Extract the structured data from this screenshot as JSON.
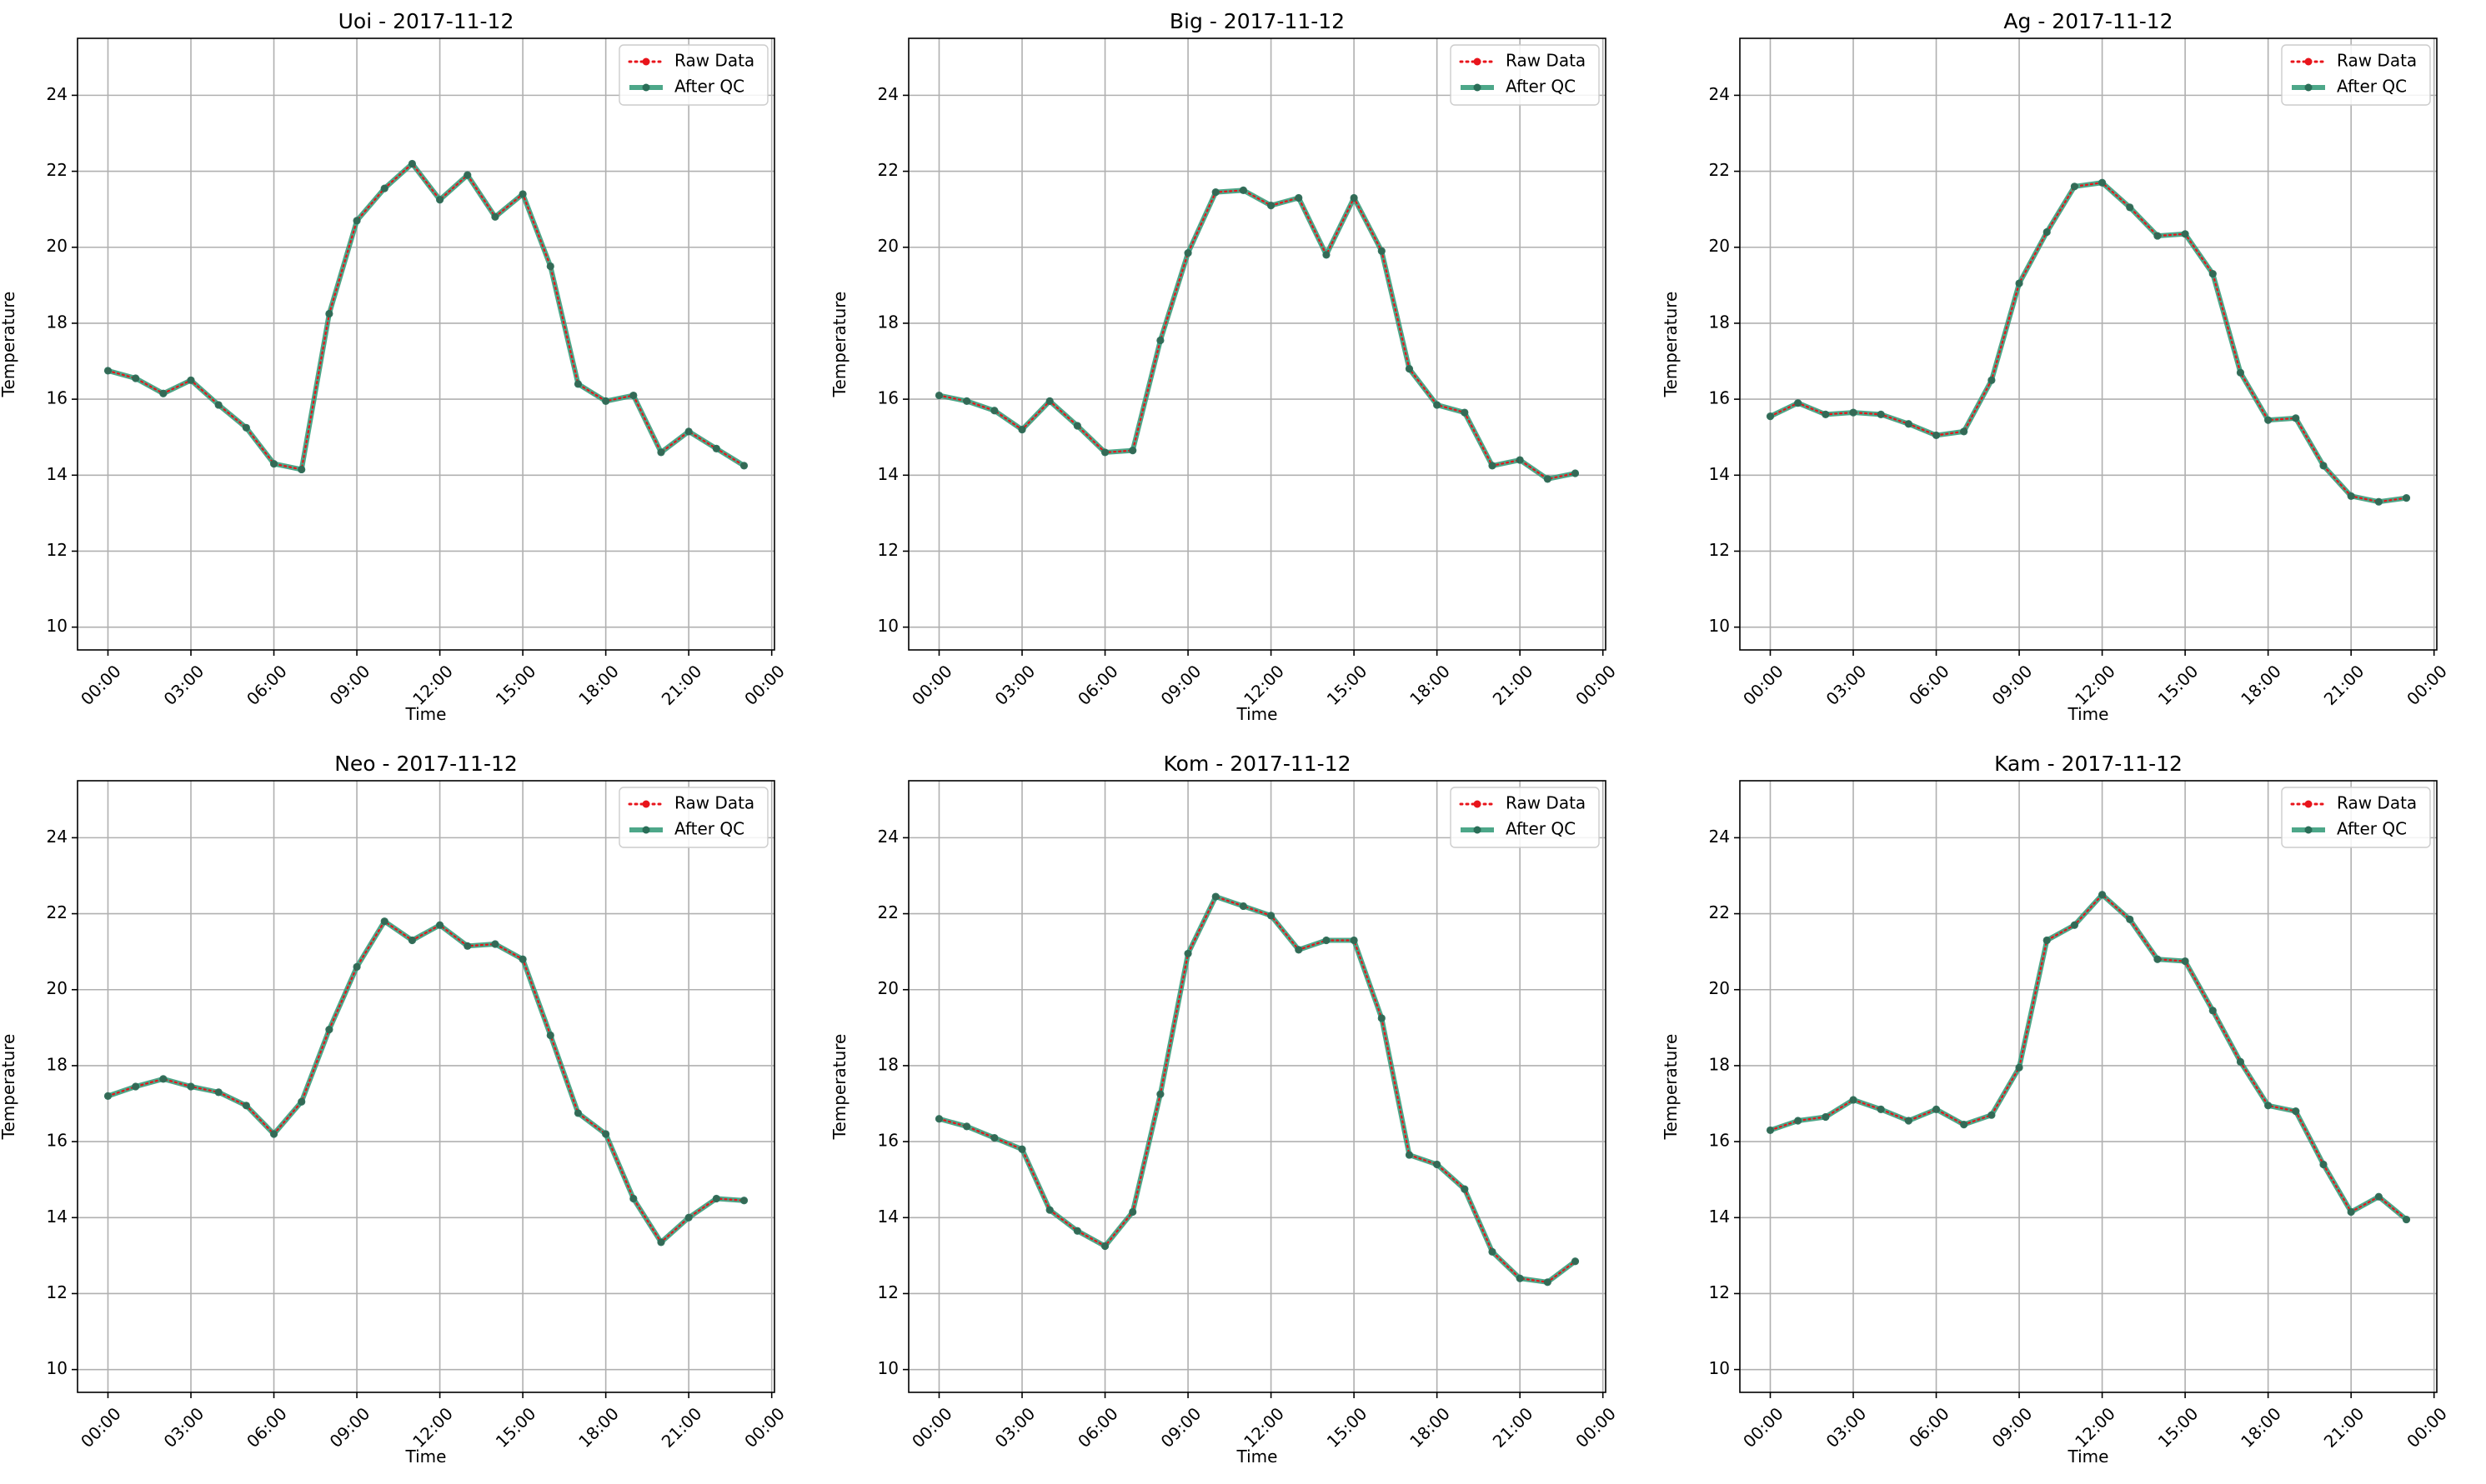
{
  "chart_data": [
    {
      "type": "line",
      "title": "Uoi - 2017-11-12",
      "xlabel": "Time",
      "ylabel": "Temperature",
      "x_unit": "hour",
      "xlim": [
        -1.1,
        24.1
      ],
      "ylim": [
        9.4,
        25.5
      ],
      "xticks": [
        "00:00",
        "03:00",
        "06:00",
        "09:00",
        "12:00",
        "15:00",
        "18:00",
        "21:00",
        "00:00"
      ],
      "yticks": [
        "10",
        "12",
        "14",
        "16",
        "18",
        "20",
        "22",
        "24"
      ],
      "grid": true,
      "legend_position": "top-right",
      "x": [
        0,
        1,
        2,
        3,
        4,
        5,
        6,
        7,
        8,
        9,
        10,
        11,
        12,
        13,
        14,
        15,
        16,
        17,
        18,
        19,
        20,
        21,
        22,
        23
      ],
      "series": [
        {
          "name": "Raw Data",
          "values": [
            16.75,
            16.55,
            16.15,
            16.5,
            15.85,
            15.25,
            14.3,
            14.15,
            18.25,
            20.7,
            21.55,
            22.2,
            21.25,
            21.9,
            20.8,
            21.4,
            19.5,
            16.4,
            15.95,
            16.1,
            14.6,
            15.15,
            14.7,
            14.25
          ]
        },
        {
          "name": "After QC",
          "values": [
            16.75,
            16.55,
            16.15,
            16.5,
            15.85,
            15.25,
            14.3,
            14.15,
            18.25,
            20.7,
            21.55,
            22.2,
            21.25,
            21.9,
            20.8,
            21.4,
            19.5,
            16.4,
            15.95,
            16.1,
            14.6,
            15.15,
            14.7,
            14.25
          ]
        }
      ]
    },
    {
      "type": "line",
      "title": "Big - 2017-11-12",
      "xlabel": "Time",
      "ylabel": "Temperature",
      "x_unit": "hour",
      "xlim": [
        -1.1,
        24.1
      ],
      "ylim": [
        9.4,
        25.5
      ],
      "xticks": [
        "00:00",
        "03:00",
        "06:00",
        "09:00",
        "12:00",
        "15:00",
        "18:00",
        "21:00",
        "00:00"
      ],
      "yticks": [
        "10",
        "12",
        "14",
        "16",
        "18",
        "20",
        "22",
        "24"
      ],
      "grid": true,
      "legend_position": "top-right",
      "x": [
        0,
        1,
        2,
        3,
        4,
        5,
        6,
        7,
        8,
        9,
        10,
        11,
        12,
        13,
        14,
        15,
        16,
        17,
        18,
        19,
        20,
        21,
        22,
        23
      ],
      "series": [
        {
          "name": "Raw Data",
          "values": [
            16.1,
            15.95,
            15.7,
            15.2,
            15.95,
            15.3,
            14.6,
            14.65,
            17.55,
            19.85,
            21.45,
            21.5,
            21.1,
            21.3,
            19.8,
            21.3,
            19.9,
            16.8,
            15.85,
            15.65,
            14.25,
            14.4,
            13.9,
            14.05
          ]
        },
        {
          "name": "After QC",
          "values": [
            16.1,
            15.95,
            15.7,
            15.2,
            15.95,
            15.3,
            14.6,
            14.65,
            17.55,
            19.85,
            21.45,
            21.5,
            21.1,
            21.3,
            19.8,
            21.3,
            19.9,
            16.8,
            15.85,
            15.65,
            14.25,
            14.4,
            13.9,
            14.05
          ]
        }
      ]
    },
    {
      "type": "line",
      "title": "Ag - 2017-11-12",
      "xlabel": "Time",
      "ylabel": "Temperature",
      "x_unit": "hour",
      "xlim": [
        -1.1,
        24.1
      ],
      "ylim": [
        9.4,
        25.5
      ],
      "xticks": [
        "00:00",
        "03:00",
        "06:00",
        "09:00",
        "12:00",
        "15:00",
        "18:00",
        "21:00",
        "00:00"
      ],
      "yticks": [
        "10",
        "12",
        "14",
        "16",
        "18",
        "20",
        "22",
        "24"
      ],
      "grid": true,
      "legend_position": "top-right",
      "x": [
        0,
        1,
        2,
        3,
        4,
        5,
        6,
        7,
        8,
        9,
        10,
        11,
        12,
        13,
        14,
        15,
        16,
        17,
        18,
        19,
        20,
        21,
        22,
        23
      ],
      "series": [
        {
          "name": "Raw Data",
          "values": [
            15.55,
            15.9,
            15.6,
            15.65,
            15.6,
            15.35,
            15.05,
            15.15,
            16.5,
            19.05,
            20.4,
            21.6,
            21.7,
            21.05,
            20.3,
            20.35,
            19.3,
            16.7,
            15.45,
            15.5,
            14.25,
            13.45,
            13.3,
            13.4
          ]
        },
        {
          "name": "After QC",
          "values": [
            15.55,
            15.9,
            15.6,
            15.65,
            15.6,
            15.35,
            15.05,
            15.15,
            16.5,
            19.05,
            20.4,
            21.6,
            21.7,
            21.05,
            20.3,
            20.35,
            19.3,
            16.7,
            15.45,
            15.5,
            14.25,
            13.45,
            13.3,
            13.4
          ]
        }
      ]
    },
    {
      "type": "line",
      "title": "Neo - 2017-11-12",
      "xlabel": "Time",
      "ylabel": "Temperature",
      "x_unit": "hour",
      "xlim": [
        -1.1,
        24.1
      ],
      "ylim": [
        9.4,
        25.5
      ],
      "xticks": [
        "00:00",
        "03:00",
        "06:00",
        "09:00",
        "12:00",
        "15:00",
        "18:00",
        "21:00",
        "00:00"
      ],
      "yticks": [
        "10",
        "12",
        "14",
        "16",
        "18",
        "20",
        "22",
        "24"
      ],
      "grid": true,
      "legend_position": "top-right",
      "x": [
        0,
        1,
        2,
        3,
        4,
        5,
        6,
        7,
        8,
        9,
        10,
        11,
        12,
        13,
        14,
        15,
        16,
        17,
        18,
        19,
        20,
        21,
        22,
        23
      ],
      "series": [
        {
          "name": "Raw Data",
          "values": [
            17.2,
            17.45,
            17.65,
            17.45,
            17.3,
            16.95,
            16.2,
            17.05,
            18.95,
            20.6,
            21.8,
            21.3,
            21.7,
            21.15,
            21.2,
            20.8,
            18.8,
            16.75,
            16.2,
            14.5,
            13.35,
            14.0,
            14.5,
            14.45
          ]
        },
        {
          "name": "After QC",
          "values": [
            17.2,
            17.45,
            17.65,
            17.45,
            17.3,
            16.95,
            16.2,
            17.05,
            18.95,
            20.6,
            21.8,
            21.3,
            21.7,
            21.15,
            21.2,
            20.8,
            18.8,
            16.75,
            16.2,
            14.5,
            13.35,
            14.0,
            14.5,
            14.45
          ]
        }
      ]
    },
    {
      "type": "line",
      "title": "Kom - 2017-11-12",
      "xlabel": "Time",
      "ylabel": "Temperature",
      "x_unit": "hour",
      "xlim": [
        -1.1,
        24.1
      ],
      "ylim": [
        9.4,
        25.5
      ],
      "xticks": [
        "00:00",
        "03:00",
        "06:00",
        "09:00",
        "12:00",
        "15:00",
        "18:00",
        "21:00",
        "00:00"
      ],
      "yticks": [
        "10",
        "12",
        "14",
        "16",
        "18",
        "20",
        "22",
        "24"
      ],
      "grid": true,
      "legend_position": "top-right",
      "x": [
        0,
        1,
        2,
        3,
        4,
        5,
        6,
        7,
        8,
        9,
        10,
        11,
        12,
        13,
        14,
        15,
        16,
        17,
        18,
        19,
        20,
        21,
        22,
        23
      ],
      "series": [
        {
          "name": "Raw Data",
          "values": [
            16.6,
            16.4,
            16.1,
            15.8,
            14.2,
            13.65,
            13.25,
            14.15,
            17.25,
            20.95,
            22.45,
            22.2,
            21.95,
            21.05,
            21.3,
            21.3,
            19.25,
            15.65,
            15.4,
            14.75,
            13.1,
            12.4,
            12.3,
            12.85
          ]
        },
        {
          "name": "After QC",
          "values": [
            16.6,
            16.4,
            16.1,
            15.8,
            14.2,
            13.65,
            13.25,
            14.15,
            17.25,
            20.95,
            22.45,
            22.2,
            21.95,
            21.05,
            21.3,
            21.3,
            19.25,
            15.65,
            15.4,
            14.75,
            13.1,
            12.4,
            12.3,
            12.85
          ]
        }
      ]
    },
    {
      "type": "line",
      "title": "Kam - 2017-11-12",
      "xlabel": "Time",
      "ylabel": "Temperature",
      "x_unit": "hour",
      "xlim": [
        -1.1,
        24.1
      ],
      "ylim": [
        9.4,
        25.5
      ],
      "xticks": [
        "00:00",
        "03:00",
        "06:00",
        "09:00",
        "12:00",
        "15:00",
        "18:00",
        "21:00",
        "00:00"
      ],
      "yticks": [
        "10",
        "12",
        "14",
        "16",
        "18",
        "20",
        "22",
        "24"
      ],
      "grid": true,
      "legend_position": "top-right",
      "x": [
        0,
        1,
        2,
        3,
        4,
        5,
        6,
        7,
        8,
        9,
        10,
        11,
        12,
        13,
        14,
        15,
        16,
        17,
        18,
        19,
        20,
        21,
        22,
        23
      ],
      "series": [
        {
          "name": "Raw Data",
          "values": [
            16.3,
            16.55,
            16.65,
            17.1,
            16.85,
            16.55,
            16.85,
            16.45,
            16.7,
            17.95,
            21.3,
            21.7,
            22.5,
            21.85,
            20.8,
            20.75,
            19.45,
            18.1,
            16.95,
            16.8,
            15.4,
            14.15,
            14.55,
            13.95
          ]
        },
        {
          "name": "After QC",
          "values": [
            16.3,
            16.55,
            16.65,
            17.1,
            16.85,
            16.55,
            16.85,
            16.45,
            16.7,
            17.95,
            21.3,
            21.7,
            22.5,
            21.85,
            20.8,
            20.75,
            19.45,
            18.1,
            16.95,
            16.8,
            15.4,
            14.15,
            14.55,
            13.95
          ]
        }
      ]
    }
  ],
  "colors": {
    "raw": "#e8141b",
    "qc_line": "#3a9d7c",
    "qc_marker": "#2a6e58",
    "grid": "#b0b0b0",
    "legend_border": "#cccccc"
  }
}
